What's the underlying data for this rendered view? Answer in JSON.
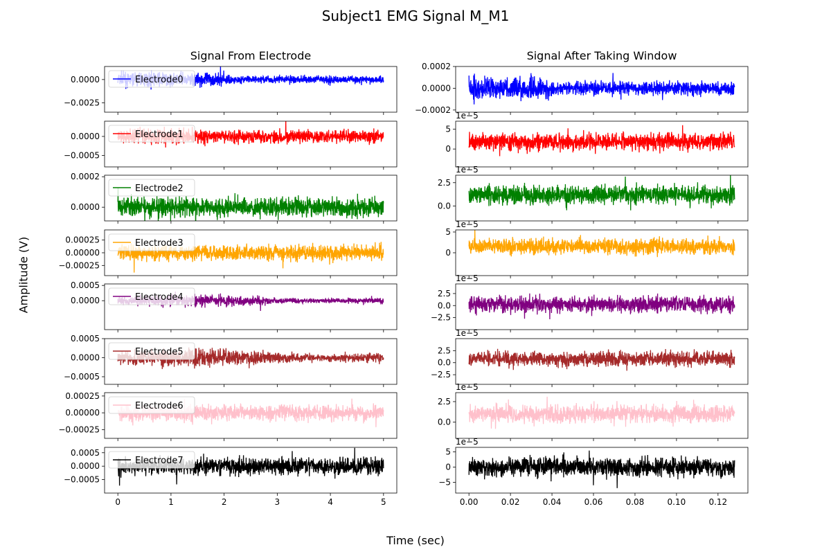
{
  "figure": {
    "title": "Subject1 EMG Signal M_M1",
    "ylabel": "Amplitude (V)",
    "xlabel": "Time (sec)",
    "column_titles": [
      "Signal From Electrode",
      "Signal After Taking Window"
    ]
  },
  "chart_data": [
    {
      "type": "line",
      "panel": "raw-0",
      "series": [
        {
          "name": "Electrode0",
          "color": "#0000ff"
        }
      ],
      "amplitude": 0.0012,
      "xlim": [
        -0.25,
        5.25
      ],
      "ylim": [
        -0.0035,
        0.0014
      ],
      "xticks": [
        0,
        1,
        2,
        3,
        4,
        5
      ],
      "yticks": [
        -0.0025,
        0.0
      ],
      "ytick_labels": [
        "−0.0025",
        "0.0000"
      ]
    },
    {
      "type": "line",
      "panel": "raw-1",
      "series": [
        {
          "name": "Electrode1",
          "color": "#ff0000"
        }
      ],
      "amplitude": 0.0004,
      "xlim": [
        -0.25,
        5.25
      ],
      "ylim": [
        -0.0008,
        0.0004
      ],
      "xticks": [
        0,
        1,
        2,
        3,
        4,
        5
      ],
      "yticks": [
        -0.0005,
        0.0
      ],
      "ytick_labels": [
        "−0.0005",
        "0.0000"
      ]
    },
    {
      "type": "line",
      "panel": "raw-2",
      "series": [
        {
          "name": "Electrode2",
          "color": "#008000"
        }
      ],
      "amplitude": 0.00012,
      "xlim": [
        -0.25,
        5.25
      ],
      "ylim": [
        -9e-05,
        0.00021
      ],
      "xticks": [
        0,
        1,
        2,
        3,
        4,
        5
      ],
      "yticks": [
        0.0,
        0.0002
      ],
      "ytick_labels": [
        "0.0000",
        "0.0002"
      ]
    },
    {
      "type": "line",
      "panel": "raw-3",
      "series": [
        {
          "name": "Electrode3",
          "color": "#ffa500"
        }
      ],
      "amplitude": 0.0003,
      "xlim": [
        -0.25,
        5.25
      ],
      "ylim": [
        -0.00045,
        0.00045
      ],
      "xticks": [
        0,
        1,
        2,
        3,
        4,
        5
      ],
      "yticks": [
        -0.00025,
        0.0,
        0.00025
      ],
      "ytick_labels": [
        "−0.00025",
        "0.00000",
        "0.00025"
      ]
    },
    {
      "type": "line",
      "panel": "raw-4",
      "series": [
        {
          "name": "Electrode4",
          "color": "#800080"
        }
      ],
      "amplitude": 0.0003,
      "xlim": [
        -0.25,
        5.25
      ],
      "ylim": [
        -0.00095,
        0.00055
      ],
      "xticks": [
        0,
        1,
        2,
        3,
        4,
        5
      ],
      "yticks": [
        0.0,
        0.0005
      ],
      "ytick_labels": [
        "0.0000",
        "0.0005"
      ]
    },
    {
      "type": "line",
      "panel": "raw-5",
      "series": [
        {
          "name": "Electrode5",
          "color": "#a52a2a"
        }
      ],
      "amplitude": 0.0004,
      "xlim": [
        -0.25,
        5.25
      ],
      "ylim": [
        -0.0007,
        0.0005
      ],
      "xticks": [
        0,
        1,
        2,
        3,
        4,
        5
      ],
      "yticks": [
        -0.0005,
        0.0,
        0.0005
      ],
      "ytick_labels": [
        "−0.0005",
        "0.0000",
        "0.0005"
      ]
    },
    {
      "type": "line",
      "panel": "raw-6",
      "series": [
        {
          "name": "Electrode6",
          "color": "#ffc0cb"
        }
      ],
      "amplitude": 0.00022,
      "xlim": [
        -0.25,
        5.25
      ],
      "ylim": [
        -0.00038,
        0.0003
      ],
      "xticks": [
        0,
        1,
        2,
        3,
        4,
        5
      ],
      "yticks": [
        -0.00025,
        0.0,
        0.00025
      ],
      "ytick_labels": [
        "−0.00025",
        "0.00000",
        "0.00025"
      ]
    },
    {
      "type": "line",
      "panel": "raw-7",
      "series": [
        {
          "name": "Electrode7",
          "color": "#000000"
        }
      ],
      "amplitude": 0.0006,
      "xlim": [
        -0.25,
        5.25
      ],
      "ylim": [
        -0.001,
        0.0007
      ],
      "xticks": [
        0,
        1,
        2,
        3,
        4,
        5
      ],
      "yticks": [
        -0.0005,
        0.0,
        0.0005
      ],
      "ytick_labels": [
        "−0.0005",
        "0.0000",
        "0.0005"
      ],
      "xtick_labels": [
        "0",
        "1",
        "2",
        "3",
        "4",
        "5"
      ]
    },
    {
      "type": "line",
      "panel": "win-0",
      "series": [
        {
          "name": "Electrode0",
          "color": "#0000ff"
        }
      ],
      "amplitude": 0.00017,
      "xlim": [
        -0.0064,
        0.1344
      ],
      "ylim": [
        -0.00022,
        0.0002
      ],
      "xticks": [
        0,
        0.02,
        0.04,
        0.06,
        0.08,
        0.1,
        0.12
      ],
      "yticks": [
        -0.0002,
        0.0,
        0.0002
      ],
      "ytick_labels": [
        "−0.0002",
        "0.0000",
        "0.0002"
      ]
    },
    {
      "type": "line",
      "panel": "win-1",
      "series": [
        {
          "name": "Electrode1",
          "color": "#ff0000"
        }
      ],
      "offset_text": "1e−5",
      "amplitude": 3.5,
      "center": 1.8,
      "xlim": [
        -0.0064,
        0.1344
      ],
      "ylim": [
        -4.5,
        7
      ],
      "xticks": [
        0,
        0.02,
        0.04,
        0.06,
        0.08,
        0.1,
        0.12
      ],
      "yticks": [
        0,
        5
      ],
      "ytick_labels": [
        "0",
        "5"
      ]
    },
    {
      "type": "line",
      "panel": "win-2",
      "series": [
        {
          "name": "Electrode2",
          "color": "#008000"
        }
      ],
      "offset_text": "1e−5",
      "amplitude": 1.7,
      "center": 1.2,
      "xlim": [
        -0.0064,
        0.1344
      ],
      "ylim": [
        -1.6,
        3.3
      ],
      "xticks": [
        0,
        0.02,
        0.04,
        0.06,
        0.08,
        0.1,
        0.12
      ],
      "yticks": [
        0.0,
        2.5
      ],
      "ytick_labels": [
        "0.0",
        "2.5"
      ]
    },
    {
      "type": "line",
      "panel": "win-3",
      "series": [
        {
          "name": "Electrode3",
          "color": "#ffa500"
        }
      ],
      "offset_text": "1e−5",
      "amplitude": 3.0,
      "center": 1.5,
      "xlim": [
        -0.0064,
        0.1344
      ],
      "ylim": [
        -5.5,
        5.5
      ],
      "xticks": [
        0,
        0.02,
        0.04,
        0.06,
        0.08,
        0.1,
        0.12
      ],
      "yticks": [
        0,
        5
      ],
      "ytick_labels": [
        "0",
        "5"
      ]
    },
    {
      "type": "line",
      "panel": "win-4",
      "series": [
        {
          "name": "Electrode4",
          "color": "#800080"
        }
      ],
      "offset_text": "1e−5",
      "amplitude": 2.8,
      "center": 0.2,
      "xlim": [
        -0.0064,
        0.1344
      ],
      "ylim": [
        -5.0,
        4.5
      ],
      "xticks": [
        0,
        0.02,
        0.04,
        0.06,
        0.08,
        0.1,
        0.12
      ],
      "yticks": [
        -2.5,
        0.0,
        2.5
      ],
      "ytick_labels": [
        "−2.5",
        "0.0",
        "2.5"
      ]
    },
    {
      "type": "line",
      "panel": "win-5",
      "series": [
        {
          "name": "Electrode5",
          "color": "#a52a2a"
        }
      ],
      "offset_text": "1e−5",
      "amplitude": 2.5,
      "center": 0.8,
      "xlim": [
        -0.0064,
        0.1344
      ],
      "ylim": [
        -4.5,
        5.0
      ],
      "xticks": [
        0,
        0.02,
        0.04,
        0.06,
        0.08,
        0.1,
        0.12
      ],
      "yticks": [
        -2.5,
        0.0,
        2.5
      ],
      "ytick_labels": [
        "−2.5",
        "0.0",
        "2.5"
      ]
    },
    {
      "type": "line",
      "panel": "win-6",
      "series": [
        {
          "name": "Electrode6",
          "color": "#ffc0cb"
        }
      ],
      "offset_text": "1e−5",
      "amplitude": 1.8,
      "center": 1.0,
      "xlim": [
        -0.0064,
        0.1344
      ],
      "ylim": [
        -2.0,
        3.6
      ],
      "xticks": [
        0,
        0.02,
        0.04,
        0.06,
        0.08,
        0.1,
        0.12
      ],
      "yticks": [
        0.0,
        2.5
      ],
      "ytick_labels": [
        "0.0",
        "2.5"
      ]
    },
    {
      "type": "line",
      "panel": "win-7",
      "series": [
        {
          "name": "Electrode7",
          "color": "#000000"
        }
      ],
      "offset_text": "1e−5",
      "amplitude": 5.0,
      "center": 0.0,
      "xlim": [
        -0.0064,
        0.1344
      ],
      "ylim": [
        -8.5,
        6.5
      ],
      "xticks": [
        0,
        0.02,
        0.04,
        0.06,
        0.08,
        0.1,
        0.12
      ],
      "yticks": [
        -5,
        0,
        5
      ],
      "ytick_labels": [
        "−5",
        "0",
        "5"
      ],
      "xtick_labels": [
        "0.00",
        "0.02",
        "0.04",
        "0.06",
        "0.08",
        "0.10",
        "0.12"
      ]
    }
  ]
}
